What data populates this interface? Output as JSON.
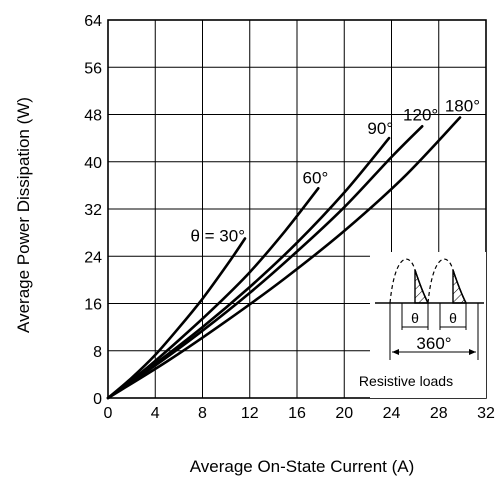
{
  "chart_data": {
    "type": "line",
    "title": "",
    "xlabel": "Average On-State Current  (A)",
    "ylabel": "Average Power Dissipation  (W)",
    "xlim": [
      0,
      32
    ],
    "ylim": [
      0,
      64
    ],
    "xticks": [
      0,
      4,
      8,
      12,
      16,
      20,
      24,
      28,
      32
    ],
    "yticks": [
      0,
      8,
      16,
      24,
      32,
      40,
      48,
      56,
      64
    ],
    "grid": true,
    "series": [
      {
        "name": "θ = 30°",
        "x": [
          0,
          2,
          4,
          6,
          8,
          10,
          11.6
        ],
        "y": [
          0,
          3.4,
          7.3,
          11.9,
          16.8,
          22.3,
          27
        ]
      },
      {
        "name": "60°",
        "x": [
          0,
          3,
          6,
          9,
          12,
          15,
          17.8
        ],
        "y": [
          0,
          4.6,
          9.8,
          15.3,
          21.3,
          28.3,
          35.5
        ]
      },
      {
        "name": "90°",
        "x": [
          0,
          4,
          8,
          12,
          16,
          20,
          23.8
        ],
        "y": [
          0,
          5.8,
          12,
          18.8,
          26.3,
          34.8,
          44
        ]
      },
      {
        "name": "120°",
        "x": [
          0,
          4,
          8,
          12,
          16,
          20,
          24,
          26.6
        ],
        "y": [
          0,
          5.5,
          11.4,
          17.8,
          24.8,
          32.3,
          40.8,
          46
        ]
      },
      {
        "name": "180°",
        "x": [
          0,
          5,
          10,
          15,
          20,
          25,
          29.8
        ],
        "y": [
          0,
          6.2,
          13,
          20.3,
          28.3,
          37.3,
          47.5
        ]
      }
    ],
    "annotations": {
      "theta_symbol": "θ",
      "period": "360°",
      "load": "Resistive loads"
    }
  }
}
